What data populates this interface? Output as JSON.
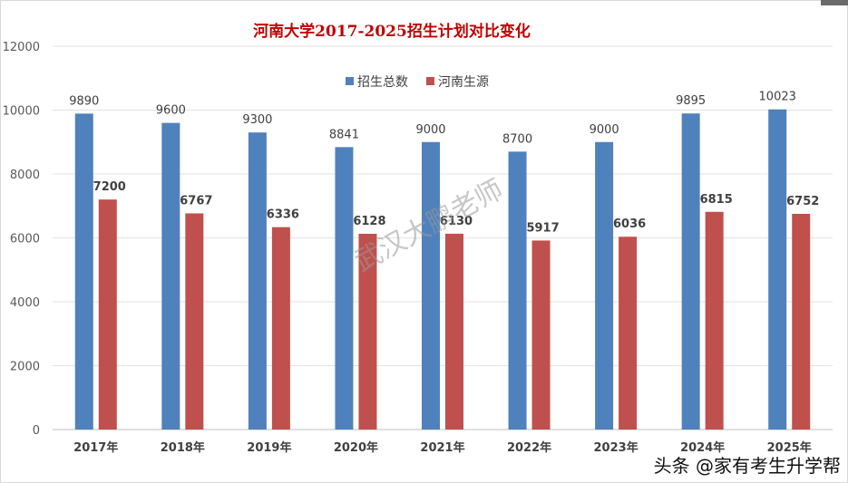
{
  "chart_data": {
    "type": "bar",
    "title": "河南大学2017-2025招生计划对比变化",
    "categories": [
      "2017年",
      "2018年",
      "2019年",
      "2020年",
      "2021年",
      "2022年",
      "2023年",
      "2024年",
      "2025年"
    ],
    "series": [
      {
        "name": "招生总数",
        "color": "#4f81bd",
        "values": [
          9890,
          9600,
          9300,
          8841,
          9000,
          8700,
          9000,
          9895,
          10023
        ]
      },
      {
        "name": "河南生源",
        "color": "#c0504d",
        "values": [
          7200,
          6767,
          6336,
          6128,
          6130,
          5917,
          6036,
          6815,
          6752
        ]
      }
    ],
    "ylim": [
      0,
      12000
    ],
    "yticks": [
      0,
      2000,
      4000,
      6000,
      8000,
      10000,
      12000
    ],
    "grid": true,
    "legend_position": "top-center"
  },
  "watermark": "武汉大鹏老师",
  "source_mark": "头条 @家有考生升学帮"
}
